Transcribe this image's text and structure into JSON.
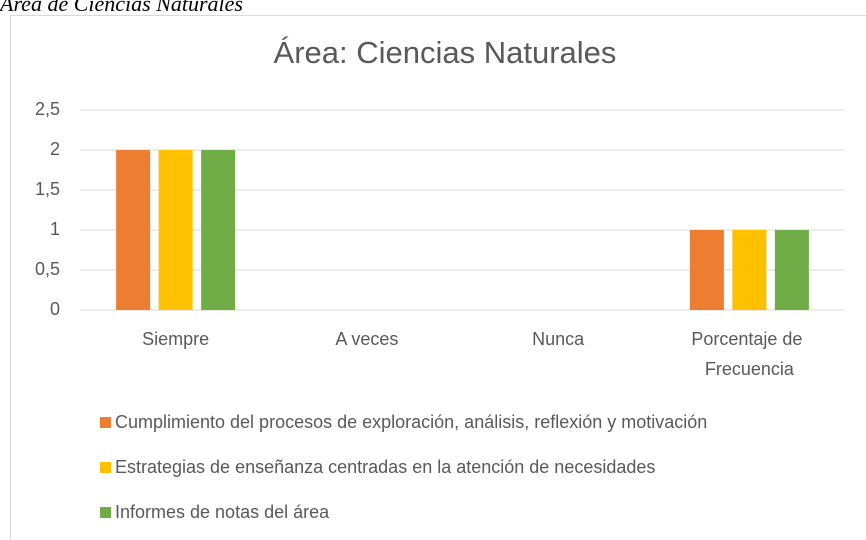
{
  "caption": "Área de Ciencias Naturales",
  "chart_data": {
    "type": "bar",
    "title": "Área: Ciencias Naturales",
    "categories": [
      "Siempre",
      "A veces",
      "Nunca",
      "Porcentaje de Frecuencia"
    ],
    "series": [
      {
        "name": "Cumplimiento del procesos de exploración, análisis, reflexión y motivación",
        "color": "#ed7d31",
        "values": [
          2,
          0,
          0,
          1
        ]
      },
      {
        "name": "Estrategias de enseñanza centradas en la atención de necesidades",
        "color": "#ffc000",
        "values": [
          2,
          0,
          0,
          1
        ]
      },
      {
        "name": "Informes de notas del área",
        "color": "#70ad47",
        "values": [
          2,
          0,
          0,
          1
        ]
      }
    ],
    "ylim": [
      0,
      2.5
    ],
    "yticks": [
      0,
      {
        "value": 0.5,
        "label": "0,5"
      },
      1,
      {
        "value": 1.5,
        "label": "1,5"
      },
      2,
      {
        "value": 2.5,
        "label": "2,5"
      }
    ],
    "grid": true,
    "legend": "bottom"
  }
}
